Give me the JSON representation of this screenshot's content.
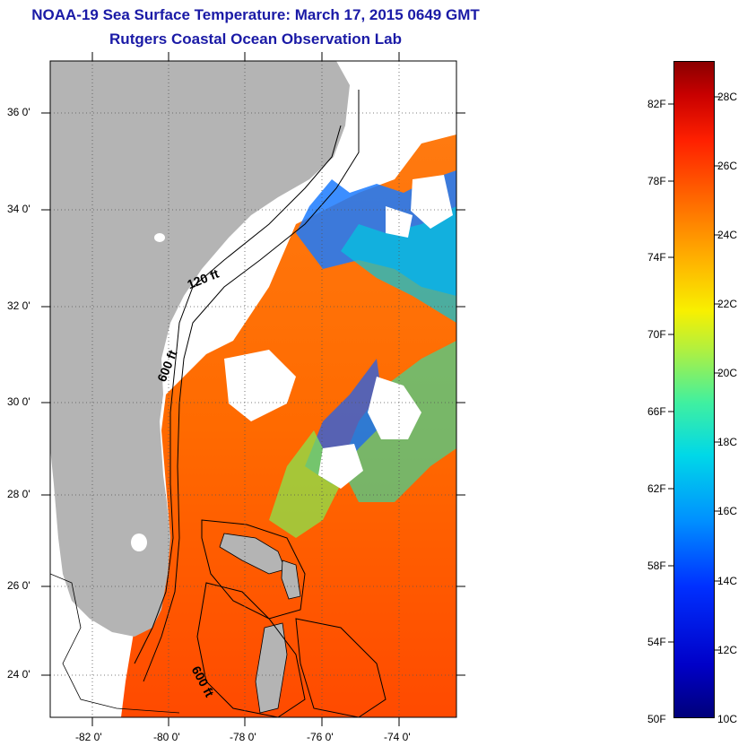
{
  "title": "NOAA-19 Sea Surface Temperature:  March 17, 2015 0649 GMT",
  "subtitle": "Rutgers Coastal Ocean Observation Lab",
  "lat_ticks": [
    "36 0'",
    "34 0'",
    "32 0'",
    "30 0'",
    "28 0'",
    "26 0'",
    "24 0'"
  ],
  "lon_ticks": [
    "-82 0'",
    "-80 0'",
    "-78 0'",
    "-76 0'",
    "-74 0'"
  ],
  "depth_labels": [
    "120 ft",
    "600 ft",
    "600 ft"
  ],
  "colorbar": {
    "fahrenheit": [
      "82F",
      "78F",
      "74F",
      "70F",
      "66F",
      "62F",
      "58F",
      "54F",
      "50F"
    ],
    "celsius": [
      "28C",
      "26C",
      "24C",
      "22C",
      "20C",
      "18C",
      "16C",
      "14C",
      "12C",
      "10C"
    ],
    "colors": [
      "#00007a",
      "#0030ff",
      "#00d8e8",
      "#b0f040",
      "#f8f000",
      "#ff7000",
      "#ff2000",
      "#8a0000"
    ]
  },
  "land_color": "#b4b4b4",
  "cloud_color": "#ffffff"
}
